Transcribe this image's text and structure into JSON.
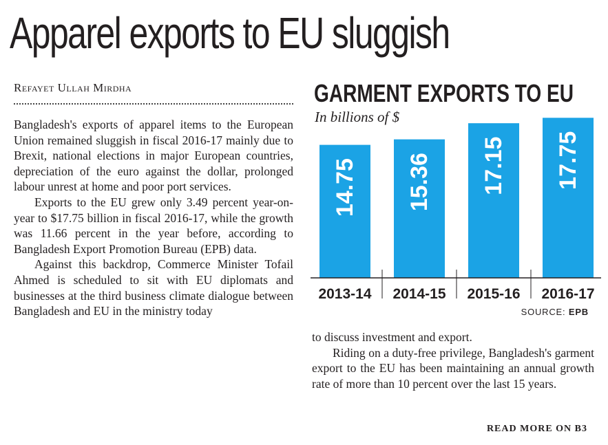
{
  "article": {
    "headline": "Apparel exports to EU sluggish",
    "byline": "Refayet Ullah Mirdha",
    "paragraphs": [
      "Bangladesh's exports of apparel items to the European Union remained sluggish in fiscal 2016-17 mainly due to Brexit, national elections in major European countries, depreciation of the euro against the dollar, prolonged labour unrest at home and poor port services.",
      "Exports to the EU grew only 3.49 percent year-on-year to $17.75 billion in fiscal 2016-17, while the growth was 11.66 percent in the year before, according to Bangladesh Export Promotion Bureau (EPB) data.",
      "Against this backdrop, Commerce Minister Tofail Ahmed is scheduled to sit with EU diplomats and businesses at the third business climate dialogue between Bangladesh and EU in the ministry today",
      "to discuss investment and export.",
      "Riding on a duty-free privilege, Bangladesh's garment export to the EU has been maintaining an annual growth rate of more than 10 percent over the last 15 years."
    ],
    "read_more": "READ MORE ON B3"
  },
  "chart_data": {
    "type": "bar",
    "title": "GARMENT EXPORTS TO EU",
    "subtitle": "In billions of $",
    "categories": [
      "2013-14",
      "2014-15",
      "2015-16",
      "2016-17"
    ],
    "values": [
      14.75,
      15.36,
      17.15,
      17.75
    ],
    "value_labels": [
      "14.75",
      "15.36",
      "17.15",
      "17.75"
    ],
    "source_label": "SOURCE:",
    "source_value": "EPB",
    "bar_color": "#1ba3e5",
    "label_color": "#ffffff",
    "ylim": [
      0,
      18
    ]
  }
}
